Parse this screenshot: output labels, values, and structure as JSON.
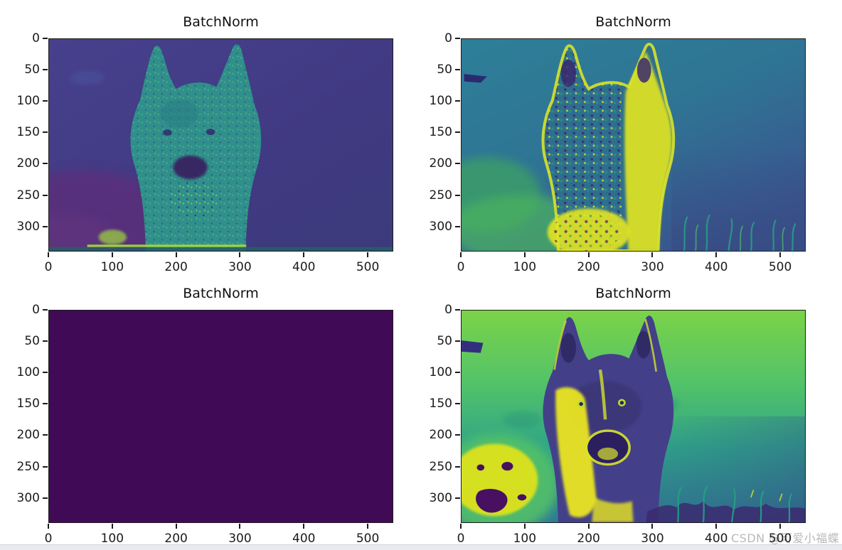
{
  "figure": {
    "background": "#ffffff",
    "panels": [
      {
        "name": "top-left",
        "title": "BatchNorm",
        "y_ticks": [
          "0",
          "50",
          "100",
          "150",
          "200",
          "250",
          "300"
        ],
        "x_ticks": [
          "0",
          "100",
          "200",
          "300",
          "400",
          "500"
        ]
      },
      {
        "name": "top-right",
        "title": "BatchNorm",
        "y_ticks": [
          "0",
          "50",
          "100",
          "150",
          "200",
          "250",
          "300"
        ],
        "x_ticks": [
          "0",
          "100",
          "200",
          "300",
          "400",
          "500"
        ]
      },
      {
        "name": "bottom-left",
        "title": "BatchNorm",
        "y_ticks": [
          "0",
          "50",
          "100",
          "150",
          "200",
          "250",
          "300"
        ],
        "x_ticks": [
          "0",
          "100",
          "200",
          "300",
          "400",
          "500"
        ]
      },
      {
        "name": "bottom-right",
        "title": "BatchNorm",
        "y_ticks": [
          "0",
          "50",
          "100",
          "150",
          "200",
          "250",
          "300"
        ],
        "x_ticks": [
          "0",
          "100",
          "200",
          "300",
          "400",
          "500"
        ]
      }
    ],
    "watermark": {
      "text": "CSDN @可爱小福蝶",
      "color": "#8f8f93"
    }
  },
  "chart_data": [
    {
      "type": "heatmap",
      "title": "BatchNorm",
      "x_range": [
        0,
        540
      ],
      "y_range": [
        340,
        0
      ],
      "x_ticks": [
        0,
        100,
        200,
        300,
        400,
        500
      ],
      "y_ticks": [
        0,
        50,
        100,
        150,
        200,
        250,
        300
      ],
      "colormap": "viridis",
      "grid": false,
      "colors": {
        "background": "#443b86",
        "subject": "#2f8f8c",
        "lowlight": "#5c2f7a",
        "highlight": "#a6da3a"
      },
      "description": "Feature map of a husky dog after BatchNorm: teal dog silhouette with green/yellow speckle noise on a dark indigo background; purple low-activation patch bottom-left; thin yellow-green line along bottom edge."
    },
    {
      "type": "heatmap",
      "title": "BatchNorm",
      "x_range": [
        0,
        540
      ],
      "y_range": [
        340,
        0
      ],
      "x_ticks": [
        0,
        100,
        200,
        300,
        400,
        500
      ],
      "y_ticks": [
        0,
        50,
        100,
        150,
        200,
        250,
        300
      ],
      "colormap": "viridis",
      "grid": false,
      "colors": {
        "background": "#2d7f98",
        "subject_edges": "#d8e32a",
        "grass": "#4cb45f",
        "shadow": "#3a548e"
      },
      "description": "Feature map with strong edge activations: dog outlined in bright yellow on teal-blue background, right side of face saturated yellow, green grass blobs bottom-left, grass blades bottom-right."
    },
    {
      "type": "heatmap",
      "title": "BatchNorm",
      "x_range": [
        0,
        540
      ],
      "y_range": [
        340,
        0
      ],
      "x_ticks": [
        0,
        100,
        200,
        300,
        400,
        500
      ],
      "y_ticks": [
        0,
        50,
        100,
        150,
        200,
        250,
        300
      ],
      "colormap": "viridis",
      "grid": false,
      "colors": {
        "background": "#410a57"
      },
      "description": "Dead channel: uniform near-zero activation rendered as solid dark purple."
    },
    {
      "type": "heatmap",
      "title": "BatchNorm",
      "x_range": [
        0,
        540
      ],
      "y_range": [
        340,
        0
      ],
      "x_ticks": [
        0,
        100,
        200,
        300,
        400,
        500
      ],
      "y_ticks": [
        0,
        50,
        100,
        150,
        200,
        250,
        300
      ],
      "colormap": "viridis",
      "grid": false,
      "colors": {
        "background_top": "#7bd348",
        "background_bottom": "#2f7b93",
        "subject": "#434089",
        "highlight": "#e9e520",
        "holes": "#471061"
      },
      "description": "Inverted-looking map: yellow-green background fading to teal/blue, dark purple dog with bright yellow cheek/chest patches, yellow blob with dark purple holes bottom-left, dark grass region bottom-right."
    }
  ]
}
